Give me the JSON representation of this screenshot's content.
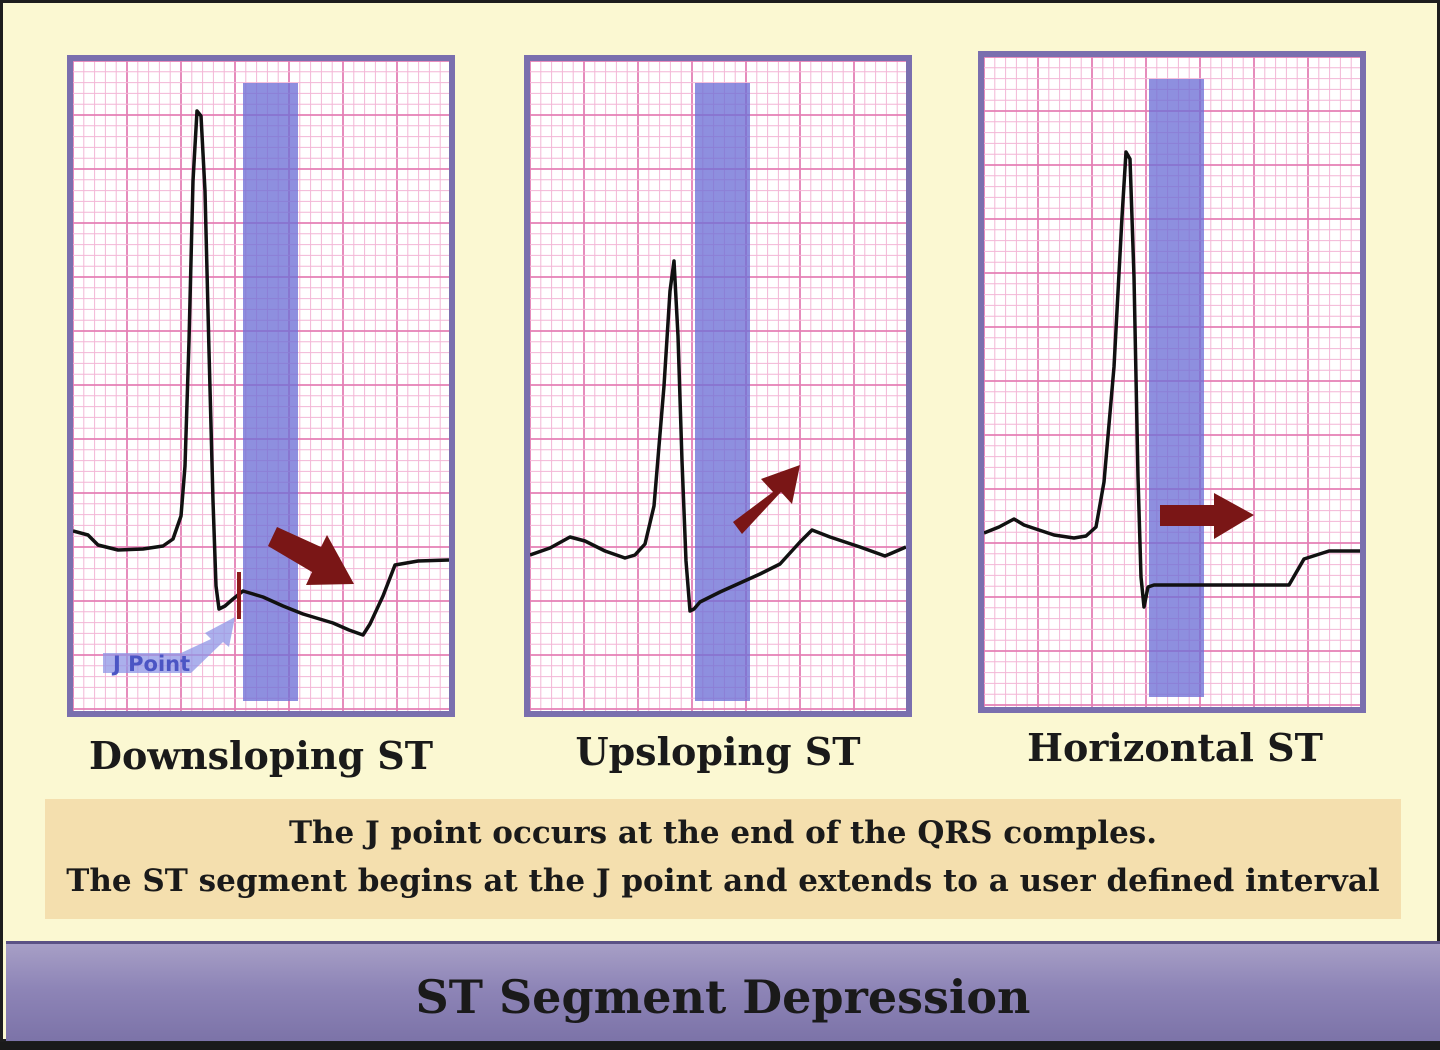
{
  "panels": [
    {
      "id": "downsloping",
      "title": "Downsloping ST",
      "annotation": "J Point",
      "arrow_direction": "down-right"
    },
    {
      "id": "upsloping",
      "title": "Upsloping ST",
      "arrow_direction": "up-right"
    },
    {
      "id": "horizontal",
      "title": "Horizontal ST",
      "arrow_direction": "right"
    }
  ],
  "note": {
    "line1": "The J point occurs at the end of the QRS comples.",
    "line2": "The ST segment begins at the J point and extends to a user defined interval"
  },
  "footer": {
    "title": "ST Segment Depression"
  },
  "colors": {
    "background": "#fbf8d2",
    "panel_border": "#7a6fae",
    "grid_minor": "#f3b6d6",
    "grid_major": "#e47fb5",
    "st_band": "#6e6fd6",
    "trace": "#111111",
    "arrow": "#7a1616",
    "note_box": "#f4dfae",
    "footer_bar": "#8e85b7"
  }
}
